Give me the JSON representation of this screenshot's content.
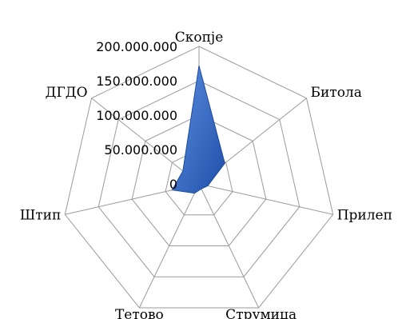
{
  "chart_data": {
    "type": "radar",
    "categories": [
      "Скопје",
      "Битола",
      "Прилеп",
      "Струмица",
      "Тетово",
      "Штип",
      "ДГДО"
    ],
    "series": [
      {
        "values": [
          172000000,
          48000000,
          13000000,
          8000000,
          15000000,
          40000000,
          30000000
        ],
        "color": "#3a6fc7"
      }
    ],
    "ticks": [
      "200.000.000",
      "150.000.000",
      "100.000.000",
      "50.000.000",
      "0"
    ],
    "tick_values": [
      200000000,
      150000000,
      100000000,
      50000000,
      0
    ],
    "rmax": 200000000,
    "grid": true,
    "legend": "none"
  }
}
